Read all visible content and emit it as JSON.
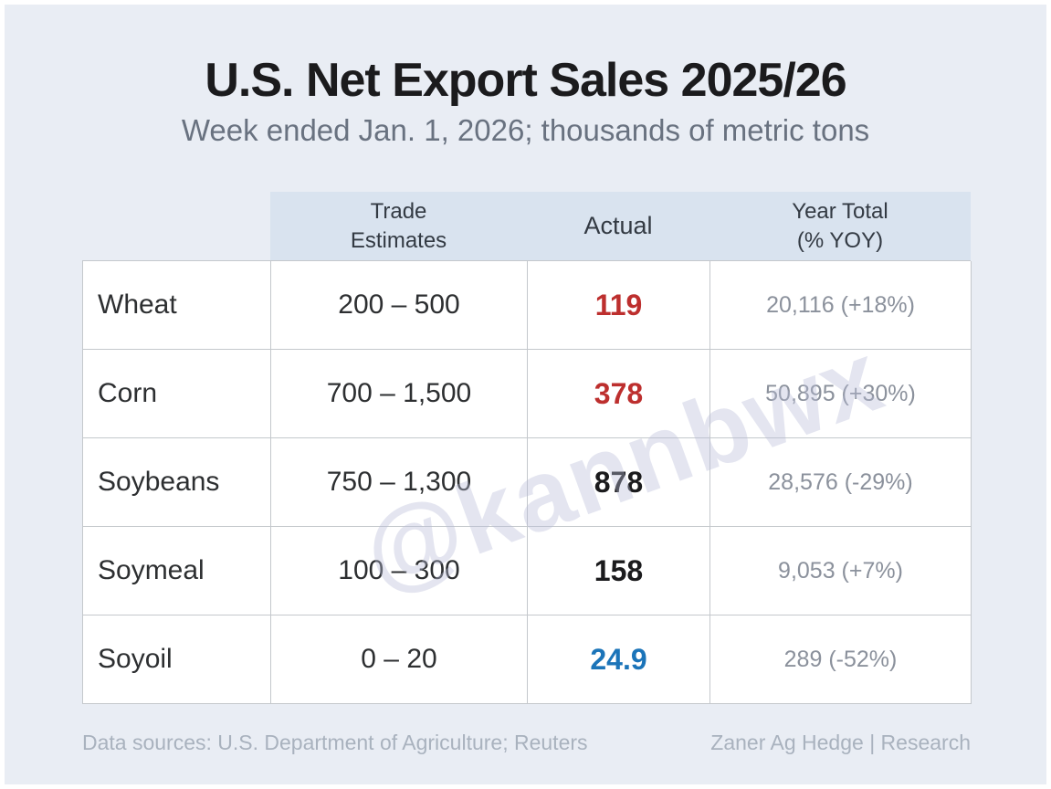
{
  "page": {
    "title": "U.S. Net Export Sales 2025/26",
    "subtitle": "Week ended Jan. 1, 2026; thousands of metric tons",
    "watermark": "@kannbwx"
  },
  "table": {
    "col_headers": {
      "trade": "Trade\nEstimates",
      "actual": "Actual",
      "year_total": "Year Total\n(% YOY)"
    },
    "rows": [
      {
        "commodity": "Wheat",
        "estimate": "200 – 500",
        "actual": "119",
        "actual_color": "red",
        "year_total": "20,116 (+18%)"
      },
      {
        "commodity": "Corn",
        "estimate": "700 – 1,500",
        "actual": "378",
        "actual_color": "red",
        "year_total": "50,895 (+30%)"
      },
      {
        "commodity": "Soybeans",
        "estimate": "750 – 1,300",
        "actual": "878",
        "actual_color": "black",
        "year_total": "28,576 (-29%)"
      },
      {
        "commodity": "Soymeal",
        "estimate": "100 – 300",
        "actual": "158",
        "actual_color": "black",
        "year_total": "9,053 (+7%)"
      },
      {
        "commodity": "Soyoil",
        "estimate": "0 – 20",
        "actual": "24.9",
        "actual_color": "blue",
        "year_total": "289 (-52%)"
      }
    ]
  },
  "footer": {
    "sources": "Data sources: U.S. Department of Agriculture; Reuters",
    "credit": "Zaner Ag Hedge | Research"
  },
  "colors": {
    "page_background": "#e9edf4",
    "header_background": "#d9e3ef",
    "accent_red": "#bd2f2e",
    "accent_blue": "#1b74b9",
    "value_black": "#1b1b1d",
    "muted_gray": "#8b919c"
  }
}
